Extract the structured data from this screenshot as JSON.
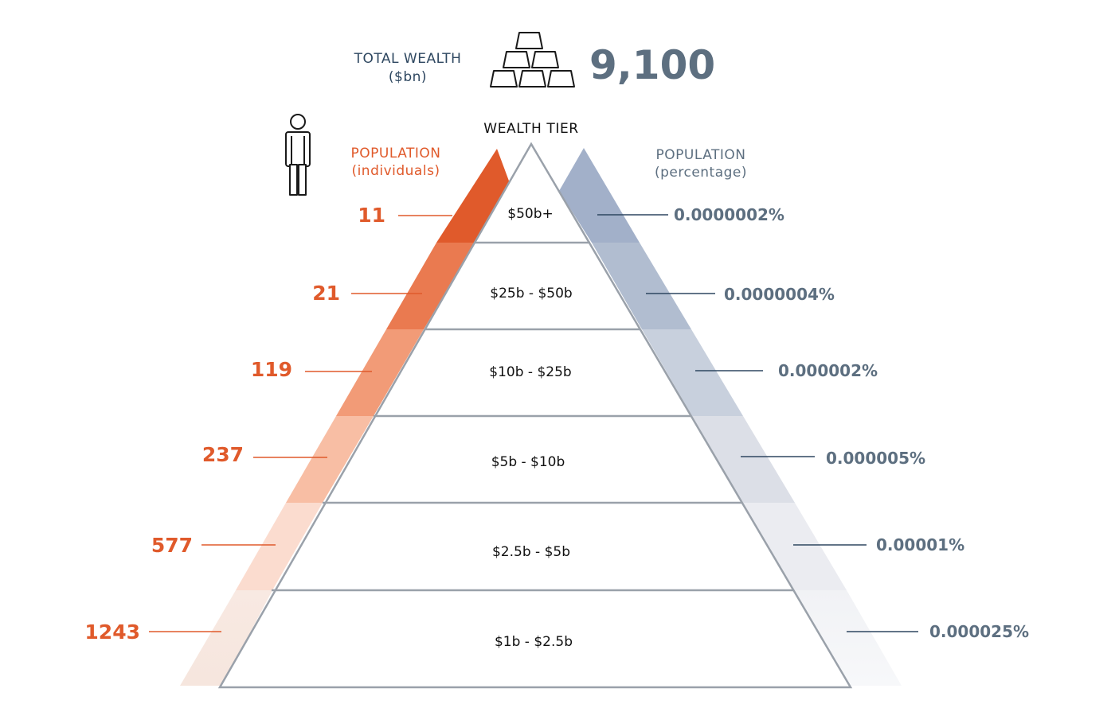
{
  "header": {
    "total_wealth_label_line1": "TOTAL WEALTH",
    "total_wealth_label_line2": "($bn)",
    "total_wealth_value": "9,100"
  },
  "left_header": {
    "line1": "POPULATION",
    "line2": "(individuals)"
  },
  "center_header": "WEALTH TIER",
  "right_header": {
    "line1": "POPULATION",
    "line2": "(percentage)"
  },
  "tiers": [
    {
      "label": "$50b+",
      "individuals": "11",
      "percentage": "0.0000002%"
    },
    {
      "label": "$25b - $50b",
      "individuals": "21",
      "percentage": "0.0000004%"
    },
    {
      "label": "$10b - $25b",
      "individuals": "119",
      "percentage": "0.000002%"
    },
    {
      "label": "$5b - $10b",
      "individuals": "237",
      "percentage": "0.000005%"
    },
    {
      "label": "$2.5b - $5b",
      "individuals": "577",
      "percentage": "0.00001%"
    },
    {
      "label": "$1b - $2.5b",
      "individuals": "1243",
      "percentage": "0.000025%"
    }
  ],
  "icons": {
    "gold": "gold-bars-icon",
    "person": "person-icon"
  },
  "colors": {
    "orange": "#e05a2b",
    "navy": "#2e4760",
    "slate": "#5d6f80",
    "tier_line": "#9aa1aa"
  }
}
